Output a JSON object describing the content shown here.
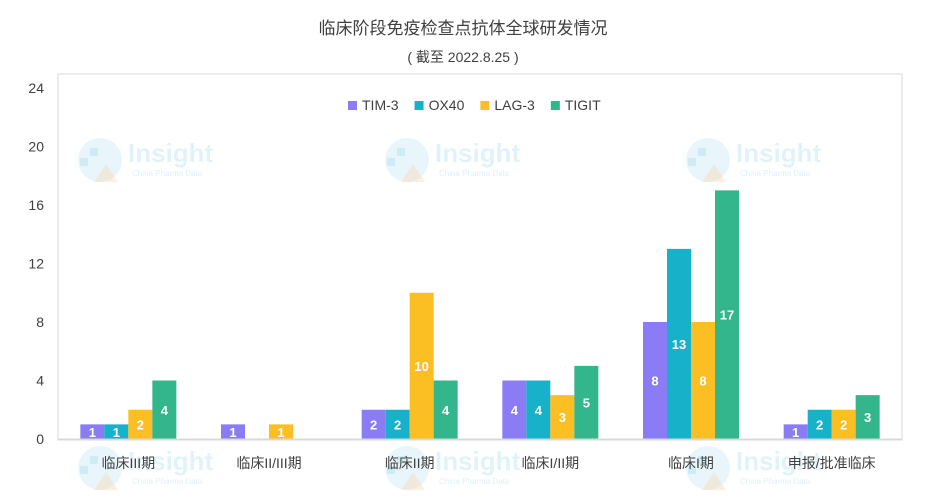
{
  "chart_data": {
    "type": "bar",
    "title": "临床阶段免疫检查点抗体全球研发情况",
    "subtitle": "( 截至 2022.8.25 )",
    "categories": [
      "临床III期",
      "临床II/III期",
      "临床II期",
      "临床I/II期",
      "临床I期",
      "申报/批准临床"
    ],
    "series": [
      {
        "name": "TIM-3",
        "color": "#8b7cf6",
        "values": [
          1,
          1,
          2,
          4,
          8,
          1
        ]
      },
      {
        "name": "OX40",
        "color": "#17b1c9",
        "values": [
          1,
          null,
          2,
          4,
          13,
          2
        ]
      },
      {
        "name": "LAG-3",
        "color": "#fbbf24",
        "values": [
          2,
          1,
          10,
          3,
          8,
          2
        ]
      },
      {
        "name": "TIGIT",
        "color": "#34b68c",
        "values": [
          4,
          null,
          4,
          5,
          17,
          3
        ]
      }
    ],
    "ylim": [
      0,
      24
    ],
    "yticks": [
      0,
      4,
      8,
      12,
      16,
      20,
      24
    ],
    "grid": false,
    "legend_position": "top-center",
    "xlabel": "",
    "ylabel": ""
  },
  "watermark": {
    "brand": "Insight",
    "tagline": "China Pharma Data"
  }
}
